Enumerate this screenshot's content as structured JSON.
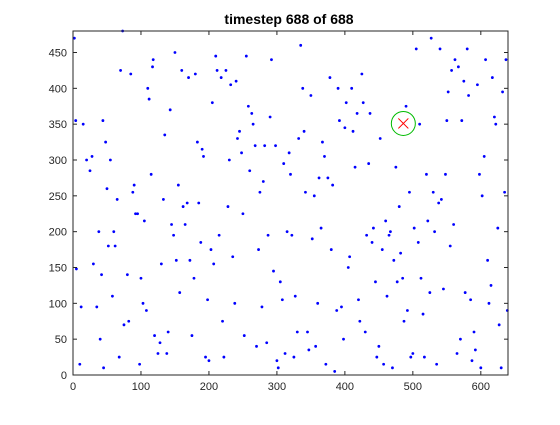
{
  "figure": {
    "title": "timestep 688 of 688"
  },
  "chart_data": {
    "type": "scatter",
    "title": "timestep 688 of 688",
    "xlabel": "",
    "ylabel": "",
    "xlim": [
      0,
      640
    ],
    "ylim": [
      0,
      480
    ],
    "xticks": [
      0,
      100,
      200,
      300,
      400,
      500,
      600
    ],
    "yticks": [
      0,
      50,
      100,
      150,
      200,
      250,
      300,
      350,
      400,
      450
    ],
    "grid": false,
    "colors": {
      "points": "#0000ff",
      "target_marker": "#ff0000",
      "target_circle": "#00bb00",
      "axes": "#262626"
    },
    "series": [
      {
        "marker": "dot",
        "points": [
          [
            2,
            470
          ],
          [
            4,
            355
          ],
          [
            5,
            148
          ],
          [
            10,
            15
          ],
          [
            12,
            95
          ],
          [
            15,
            350
          ],
          [
            20,
            300
          ],
          [
            25,
            285
          ],
          [
            28,
            305
          ],
          [
            30,
            155
          ],
          [
            35,
            95
          ],
          [
            38,
            200
          ],
          [
            40,
            50
          ],
          [
            42,
            140
          ],
          [
            44,
            355
          ],
          [
            45,
            10
          ],
          [
            48,
            325
          ],
          [
            50,
            260
          ],
          [
            52,
            180
          ],
          [
            55,
            300
          ],
          [
            58,
            110
          ],
          [
            60,
            200
          ],
          [
            62,
            180
          ],
          [
            65,
            245
          ],
          [
            68,
            25
          ],
          [
            70,
            425
          ],
          [
            73,
            480
          ],
          [
            75,
            70
          ],
          [
            80,
            140
          ],
          [
            82,
            75
          ],
          [
            85,
            420
          ],
          [
            88,
            255
          ],
          [
            90,
            265
          ],
          [
            92,
            225
          ],
          [
            95,
            225
          ],
          [
            98,
            15
          ],
          [
            100,
            135
          ],
          [
            103,
            100
          ],
          [
            105,
            215
          ],
          [
            108,
            90
          ],
          [
            110,
            400
          ],
          [
            112,
            385
          ],
          [
            115,
            280
          ],
          [
            117,
            430
          ],
          [
            118,
            440
          ],
          [
            120,
            55
          ],
          [
            125,
            30
          ],
          [
            128,
            45
          ],
          [
            130,
            155
          ],
          [
            133,
            245
          ],
          [
            135,
            335
          ],
          [
            138,
            30
          ],
          [
            140,
            60
          ],
          [
            143,
            370
          ],
          [
            145,
            210
          ],
          [
            148,
            195
          ],
          [
            150,
            450
          ],
          [
            152,
            160
          ],
          [
            155,
            265
          ],
          [
            157,
            115
          ],
          [
            160,
            425
          ],
          [
            162,
            235
          ],
          [
            165,
            210
          ],
          [
            168,
            240
          ],
          [
            170,
            415
          ],
          [
            172,
            160
          ],
          [
            175,
            55
          ],
          [
            178,
            135
          ],
          [
            180,
            420
          ],
          [
            183,
            325
          ],
          [
            185,
            240
          ],
          [
            188,
            185
          ],
          [
            190,
            315
          ],
          [
            192,
            305
          ],
          [
            195,
            25
          ],
          [
            198,
            105
          ],
          [
            200,
            20
          ],
          [
            203,
            175
          ],
          [
            205,
            380
          ],
          [
            207,
            155
          ],
          [
            210,
            445
          ],
          [
            212,
            425
          ],
          [
            215,
            195
          ],
          [
            218,
            415
          ],
          [
            220,
            75
          ],
          [
            222,
            25
          ],
          [
            225,
            425
          ],
          [
            228,
            235
          ],
          [
            230,
            300
          ],
          [
            232,
            405
          ],
          [
            235,
            165
          ],
          [
            238,
            100
          ],
          [
            240,
            410
          ],
          [
            242,
            330
          ],
          [
            245,
            340
          ],
          [
            248,
            310
          ],
          [
            250,
            225
          ],
          [
            252,
            55
          ],
          [
            255,
            445
          ],
          [
            258,
            375
          ],
          [
            260,
            285
          ],
          [
            263,
            365
          ],
          [
            265,
            350
          ],
          [
            268,
            320
          ],
          [
            270,
            40
          ],
          [
            273,
            175
          ],
          [
            275,
            255
          ],
          [
            278,
            95
          ],
          [
            280,
            270
          ],
          [
            282,
            320
          ],
          [
            285,
            45
          ],
          [
            287,
            195
          ],
          [
            290,
            360
          ],
          [
            292,
            440
          ],
          [
            295,
            145
          ],
          [
            298,
            320
          ],
          [
            300,
            20
          ],
          [
            302,
            10
          ],
          [
            305,
            130
          ],
          [
            308,
            105
          ],
          [
            310,
            295
          ],
          [
            312,
            30
          ],
          [
            315,
            200
          ],
          [
            318,
            310
          ],
          [
            320,
            280
          ],
          [
            322,
            195
          ],
          [
            325,
            25
          ],
          [
            327,
            110
          ],
          [
            330,
            60
          ],
          [
            332,
            330
          ],
          [
            335,
            460
          ],
          [
            338,
            400
          ],
          [
            340,
            340
          ],
          [
            342,
            255
          ],
          [
            345,
            60
          ],
          [
            347,
            35
          ],
          [
            350,
            390
          ],
          [
            352,
            190
          ],
          [
            355,
            250
          ],
          [
            357,
            40
          ],
          [
            360,
            100
          ],
          [
            362,
            275
          ],
          [
            365,
            205
          ],
          [
            367,
            325
          ],
          [
            370,
            305
          ],
          [
            372,
            15
          ],
          [
            375,
            275
          ],
          [
            378,
            415
          ],
          [
            380,
            175
          ],
          [
            382,
            265
          ],
          [
            385,
            5
          ],
          [
            388,
            90
          ],
          [
            390,
            400
          ],
          [
            392,
            355
          ],
          [
            395,
            95
          ],
          [
            398,
            50
          ],
          [
            400,
            345
          ],
          [
            402,
            380
          ],
          [
            405,
            150
          ],
          [
            407,
            165
          ],
          [
            410,
            400
          ],
          [
            412,
            340
          ],
          [
            415,
            290
          ],
          [
            418,
            365
          ],
          [
            420,
            105
          ],
          [
            422,
            75
          ],
          [
            425,
            420
          ],
          [
            427,
            380
          ],
          [
            430,
            60
          ],
          [
            432,
            195
          ],
          [
            435,
            295
          ],
          [
            437,
            365
          ],
          [
            440,
            185
          ],
          [
            442,
            205
          ],
          [
            445,
            130
          ],
          [
            447,
            25
          ],
          [
            450,
            40
          ],
          [
            452,
            330
          ],
          [
            455,
            175
          ],
          [
            457,
            15
          ],
          [
            460,
            215
          ],
          [
            462,
            110
          ],
          [
            465,
            195
          ],
          [
            467,
            200
          ],
          [
            470,
            10
          ],
          [
            472,
            160
          ],
          [
            475,
            290
          ],
          [
            477,
            130
          ],
          [
            480,
            235
          ],
          [
            482,
            170
          ],
          [
            485,
            135
          ],
          [
            487,
            75
          ],
          [
            490,
            375
          ],
          [
            492,
            90
          ],
          [
            495,
            255
          ],
          [
            497,
            25
          ],
          [
            500,
            30
          ],
          [
            502,
            205
          ],
          [
            505,
            455
          ],
          [
            508,
            185
          ],
          [
            510,
            350
          ],
          [
            512,
            135
          ],
          [
            515,
            85
          ],
          [
            517,
            25
          ],
          [
            520,
            280
          ],
          [
            522,
            215
          ],
          [
            525,
            115
          ],
          [
            527,
            470
          ],
          [
            530,
            255
          ],
          [
            532,
            200
          ],
          [
            535,
            15
          ],
          [
            538,
            240
          ],
          [
            540,
            455
          ],
          [
            542,
            245
          ],
          [
            545,
            120
          ],
          [
            548,
            280
          ],
          [
            550,
            355
          ],
          [
            552,
            395
          ],
          [
            555,
            180
          ],
          [
            557,
            425
          ],
          [
            560,
            210
          ],
          [
            562,
            440
          ],
          [
            565,
            30
          ],
          [
            567,
            430
          ],
          [
            570,
            50
          ],
          [
            572,
            355
          ],
          [
            575,
            410
          ],
          [
            577,
            115
          ],
          [
            580,
            455
          ],
          [
            582,
            390
          ],
          [
            585,
            105
          ],
          [
            587,
            20
          ],
          [
            590,
            60
          ],
          [
            592,
            35
          ],
          [
            595,
            405
          ],
          [
            598,
            280
          ],
          [
            600,
            10
          ],
          [
            602,
            250
          ],
          [
            605,
            305
          ],
          [
            607,
            440
          ],
          [
            610,
            160
          ],
          [
            612,
            100
          ],
          [
            615,
            125
          ],
          [
            617,
            415
          ],
          [
            620,
            360
          ],
          [
            622,
            350
          ],
          [
            625,
            205
          ],
          [
            627,
            70
          ],
          [
            630,
            10
          ],
          [
            632,
            395
          ],
          [
            635,
            255
          ],
          [
            637,
            440
          ],
          [
            639,
            90
          ]
        ]
      },
      {
        "marker": "x-with-circle",
        "points": [
          [
            486,
            351
          ]
        ]
      }
    ]
  }
}
